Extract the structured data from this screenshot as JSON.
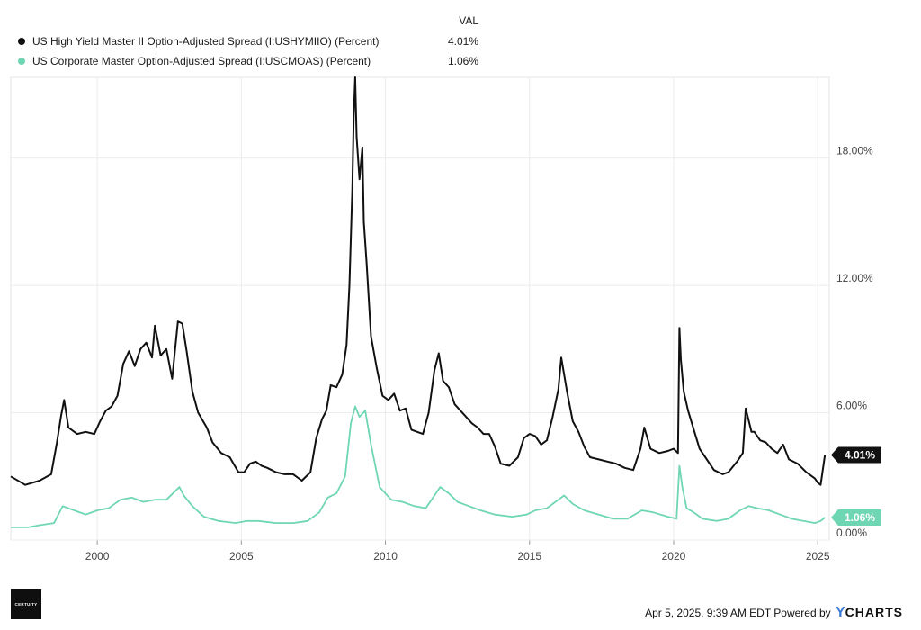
{
  "legend": {
    "header": "VAL",
    "items": [
      {
        "name": "US High Yield Master II Option-Adjusted Spread (I:USHYMIIO) (Percent)",
        "value": "4.01%",
        "color": "#111111"
      },
      {
        "name": "US Corporate Master Option-Adjusted Spread (I:USCMOAS) (Percent)",
        "value": "1.06%",
        "color": "#6fd6b4"
      }
    ]
  },
  "footer": {
    "timestamp": "Apr 5, 2025, 9:39 AM EDT Powered by",
    "brand_y": "Y",
    "brand_rest": "CHARTS"
  },
  "logo": {
    "text": "CERTUITY"
  },
  "chart_data": {
    "type": "line",
    "title": "",
    "xlabel": "",
    "ylabel": "",
    "xlim": [
      1997.0,
      2025.4
    ],
    "ylim": [
      0,
      21.8
    ],
    "y_ticks": [
      0,
      6,
      12,
      18
    ],
    "y_tick_labels": [
      "0.00%",
      "6.00%",
      "12.00%",
      "18.00%"
    ],
    "x_ticks": [
      2000,
      2005,
      2010,
      2015,
      2020,
      2025
    ],
    "x_tick_labels": [
      "2000",
      "2005",
      "2010",
      "2015",
      "2020",
      "2025"
    ],
    "grid": "vertical",
    "legend_position": "top-left",
    "series": [
      {
        "name": "US High Yield Master II Option-Adjusted Spread (I:USHYMIIO) (Percent)",
        "color": "#111111",
        "last_label": "4.01%",
        "x": [
          1997.0,
          1997.5,
          1998.0,
          1998.4,
          1998.6,
          1998.75,
          1998.85,
          1999.0,
          1999.3,
          1999.6,
          1999.9,
          2000.1,
          2000.3,
          2000.5,
          2000.7,
          2000.9,
          2001.1,
          2001.3,
          2001.5,
          2001.7,
          2001.9,
          2002.0,
          2002.2,
          2002.4,
          2002.6,
          2002.8,
          2002.95,
          2003.1,
          2003.3,
          2003.5,
          2003.8,
          2004.0,
          2004.3,
          2004.6,
          2004.9,
          2005.1,
          2005.3,
          2005.5,
          2005.7,
          2005.9,
          2006.2,
          2006.5,
          2006.8,
          2007.1,
          2007.4,
          2007.6,
          2007.8,
          2007.95,
          2008.1,
          2008.3,
          2008.5,
          2008.65,
          2008.75,
          2008.85,
          2008.9,
          2008.95,
          2009.0,
          2009.1,
          2009.2,
          2009.25,
          2009.35,
          2009.5,
          2009.7,
          2009.9,
          2010.1,
          2010.3,
          2010.5,
          2010.7,
          2010.9,
          2011.1,
          2011.3,
          2011.5,
          2011.7,
          2011.85,
          2012.0,
          2012.2,
          2012.4,
          2012.6,
          2012.8,
          2013.0,
          2013.2,
          2013.4,
          2013.6,
          2013.8,
          2014.0,
          2014.3,
          2014.6,
          2014.8,
          2015.0,
          2015.2,
          2015.4,
          2015.6,
          2015.8,
          2016.0,
          2016.1,
          2016.3,
          2016.5,
          2016.7,
          2016.9,
          2017.1,
          2017.4,
          2017.7,
          2018.0,
          2018.3,
          2018.6,
          2018.85,
          2018.98,
          2019.2,
          2019.5,
          2019.8,
          2020.0,
          2020.15,
          2020.2,
          2020.25,
          2020.35,
          2020.5,
          2020.7,
          2020.9,
          2021.1,
          2021.4,
          2021.7,
          2021.9,
          2022.2,
          2022.4,
          2022.5,
          2022.7,
          2022.8,
          2023.0,
          2023.2,
          2023.4,
          2023.6,
          2023.8,
          2024.0,
          2024.3,
          2024.6,
          2024.9,
          2025.0,
          2025.1,
          2025.25
        ],
        "values": [
          3.0,
          2.6,
          2.8,
          3.1,
          4.6,
          5.9,
          6.6,
          5.3,
          5.0,
          5.1,
          5.0,
          5.6,
          6.1,
          6.3,
          6.8,
          8.3,
          8.9,
          8.2,
          9.0,
          9.3,
          8.6,
          10.1,
          8.7,
          9.0,
          7.6,
          10.3,
          10.2,
          8.9,
          7.0,
          6.0,
          5.3,
          4.6,
          4.1,
          3.9,
          3.2,
          3.2,
          3.6,
          3.7,
          3.5,
          3.4,
          3.2,
          3.1,
          3.1,
          2.8,
          3.2,
          4.8,
          5.7,
          6.1,
          7.3,
          7.2,
          7.8,
          9.2,
          12.0,
          16.5,
          20.0,
          21.8,
          19.0,
          17.0,
          18.5,
          15.0,
          13.0,
          9.6,
          8.1,
          6.8,
          6.6,
          6.9,
          6.1,
          6.2,
          5.2,
          5.1,
          5.0,
          6.0,
          8.0,
          8.8,
          7.5,
          7.2,
          6.4,
          6.1,
          5.8,
          5.5,
          5.3,
          5.0,
          5.0,
          4.4,
          3.6,
          3.5,
          3.9,
          4.8,
          5.0,
          4.9,
          4.5,
          4.7,
          5.8,
          7.1,
          8.6,
          7.0,
          5.6,
          5.1,
          4.4,
          3.9,
          3.8,
          3.7,
          3.6,
          3.4,
          3.3,
          4.3,
          5.3,
          4.3,
          4.1,
          4.2,
          4.3,
          4.1,
          10.0,
          8.5,
          7.0,
          6.1,
          5.2,
          4.3,
          3.9,
          3.3,
          3.1,
          3.2,
          3.7,
          4.1,
          6.2,
          5.1,
          5.1,
          4.7,
          4.6,
          4.3,
          4.1,
          4.5,
          3.8,
          3.6,
          3.2,
          2.9,
          2.7,
          2.6,
          4.01
        ]
      },
      {
        "name": "US Corporate Master Option-Adjusted Spread (I:USCMOAS) (Percent)",
        "color": "#6fd6b4",
        "last_label": "1.06%",
        "x": [
          1997.0,
          1997.6,
          1998.0,
          1998.5,
          1998.8,
          1999.2,
          1999.6,
          2000.0,
          2000.4,
          2000.8,
          2001.2,
          2001.6,
          2002.0,
          2002.4,
          2002.7,
          2002.85,
          2003.0,
          2003.3,
          2003.7,
          2004.2,
          2004.8,
          2005.2,
          2005.6,
          2006.2,
          2006.8,
          2007.3,
          2007.7,
          2008.0,
          2008.3,
          2008.6,
          2008.8,
          2008.95,
          2009.1,
          2009.3,
          2009.5,
          2009.8,
          2010.2,
          2010.6,
          2011.0,
          2011.4,
          2011.7,
          2011.9,
          2012.2,
          2012.5,
          2012.9,
          2013.3,
          2013.8,
          2014.4,
          2014.9,
          2015.2,
          2015.6,
          2016.0,
          2016.2,
          2016.5,
          2016.9,
          2017.4,
          2017.9,
          2018.4,
          2018.9,
          2019.3,
          2019.8,
          2020.1,
          2020.2,
          2020.3,
          2020.45,
          2020.7,
          2021.0,
          2021.5,
          2021.9,
          2022.3,
          2022.6,
          2022.9,
          2023.3,
          2023.7,
          2024.1,
          2024.5,
          2024.9,
          2025.1,
          2025.25
        ],
        "values": [
          0.6,
          0.6,
          0.7,
          0.8,
          1.6,
          1.4,
          1.2,
          1.4,
          1.5,
          1.9,
          2.0,
          1.8,
          1.9,
          1.9,
          2.3,
          2.5,
          2.1,
          1.6,
          1.1,
          0.9,
          0.8,
          0.9,
          0.9,
          0.8,
          0.8,
          0.9,
          1.3,
          2.0,
          2.2,
          3.0,
          5.5,
          6.3,
          5.8,
          6.1,
          4.5,
          2.5,
          1.9,
          1.8,
          1.6,
          1.5,
          2.1,
          2.5,
          2.2,
          1.8,
          1.6,
          1.4,
          1.2,
          1.1,
          1.2,
          1.4,
          1.5,
          1.9,
          2.1,
          1.7,
          1.4,
          1.2,
          1.0,
          1.0,
          1.4,
          1.3,
          1.1,
          1.0,
          3.5,
          2.5,
          1.5,
          1.3,
          1.0,
          0.9,
          1.0,
          1.4,
          1.6,
          1.5,
          1.4,
          1.2,
          1.0,
          0.9,
          0.8,
          0.9,
          1.06
        ]
      }
    ]
  }
}
